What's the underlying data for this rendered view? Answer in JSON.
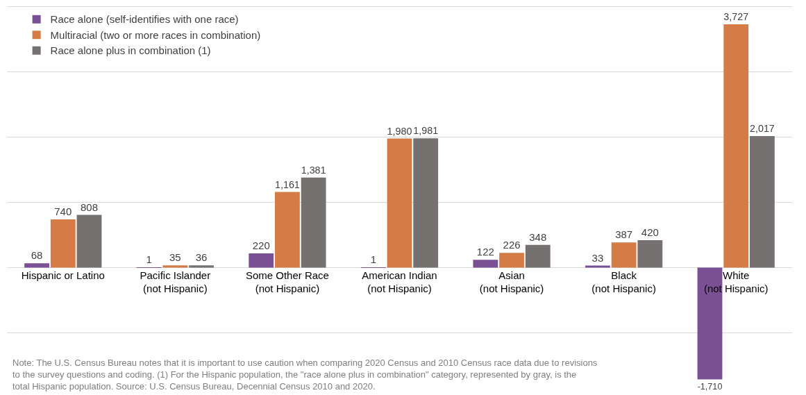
{
  "chart_data": {
    "type": "bar",
    "categories": [
      "Hispanic or Latino",
      "Pacific Islander\n(not Hispanic)",
      "Some Other Race\n(not Hispanic)",
      "American Indian\n(not Hispanic)",
      "Asian\n(not Hispanic)",
      "Black\n(not Hispanic)",
      "White\n(not Hispanic)"
    ],
    "series": [
      {
        "name": "Race alone (self-identifies with one race)",
        "color": "#7b4f94",
        "values": [
          68,
          1,
          220,
          1,
          122,
          33,
          -1710
        ],
        "value_labels": [
          "68",
          "1",
          "220",
          "1",
          "122",
          "33",
          "-1,710"
        ]
      },
      {
        "name": "Multiracial (two or more races in combination)",
        "color": "#d57b45",
        "values": [
          740,
          35,
          1161,
          1980,
          226,
          387,
          3727
        ],
        "value_labels": [
          "740",
          "35",
          "1,161",
          "1,980",
          "226",
          "387",
          "3,727"
        ]
      },
      {
        "name": "Race alone plus in combination (1)",
        "color": "#767171",
        "values": [
          808,
          36,
          1381,
          1981,
          348,
          420,
          2017
        ],
        "value_labels": [
          "808",
          "36",
          "1,381",
          "1,981",
          "348",
          "420",
          "2,017"
        ]
      }
    ],
    "ylim": [
      -1950,
      4100
    ],
    "yticks": [
      {
        "value": -1000,
        "label": null
      },
      {
        "value": 0,
        "label": null
      },
      {
        "value": 1000,
        "label": null
      },
      {
        "value": 2000,
        "label": null
      },
      {
        "value": 3000,
        "label": null
      },
      {
        "value": 4000,
        "label": null
      }
    ],
    "grid": "y",
    "tick_labels": "x",
    "legend": "top left",
    "annotations": [
      "Note: The U.S. Census Bureau notes that it is important to use caution when comparing 2020 Census and 2010 Census race data due to revisions\nto the survey questions and coding. (1) For the Hispanic population, the \"race alone plus in combination\" category, represented by gray, is the\ntotal Hispanic population. Source: U.S. Census Bureau, Decennial Census 2010 and 2020."
    ]
  }
}
